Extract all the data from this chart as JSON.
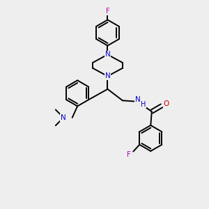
{
  "bg_color": "#eeeeee",
  "bond_color": "#000000",
  "N_color": "#0000cc",
  "O_color": "#cc0000",
  "F_color": "#bb00bb",
  "H_color": "#0000cc",
  "bond_lw": 1.4,
  "font_size": 7.5,
  "figsize": [
    3.0,
    3.0
  ],
  "dpi": 100,
  "xlim": [
    0,
    10
  ],
  "ylim": [
    0,
    10
  ]
}
